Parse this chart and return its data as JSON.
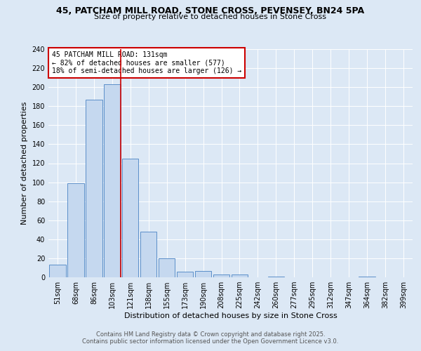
{
  "title_line1": "45, PATCHAM MILL ROAD, STONE CROSS, PEVENSEY, BN24 5PA",
  "title_line2": "Size of property relative to detached houses in Stone Cross",
  "xlabel": "Distribution of detached houses by size in Stone Cross",
  "ylabel": "Number of detached properties",
  "categories": [
    "51sqm",
    "68sqm",
    "86sqm",
    "103sqm",
    "121sqm",
    "138sqm",
    "155sqm",
    "173sqm",
    "190sqm",
    "208sqm",
    "225sqm",
    "242sqm",
    "260sqm",
    "277sqm",
    "295sqm",
    "312sqm",
    "347sqm",
    "364sqm",
    "382sqm",
    "399sqm"
  ],
  "values": [
    13,
    99,
    187,
    203,
    125,
    48,
    20,
    6,
    7,
    3,
    3,
    0,
    1,
    0,
    0,
    0,
    0,
    1,
    0,
    0
  ],
  "bar_color": "#c5d8ef",
  "bar_edge_color": "#5b8fc9",
  "red_line_after_index": 3,
  "annotation_text": "45 PATCHAM MILL ROAD: 131sqm\n← 82% of detached houses are smaller (577)\n18% of semi-detached houses are larger (126) →",
  "annotation_box_facecolor": "#ffffff",
  "annotation_box_edgecolor": "#cc0000",
  "ylim": [
    0,
    240
  ],
  "yticks": [
    0,
    20,
    40,
    60,
    80,
    100,
    120,
    140,
    160,
    180,
    200,
    220,
    240
  ],
  "footer1": "Contains HM Land Registry data © Crown copyright and database right 2025.",
  "footer2": "Contains public sector information licensed under the Open Government Licence v3.0.",
  "background_color": "#dce8f5",
  "plot_background": "#dce8f5",
  "red_line_color": "#cc0000",
  "grid_color": "#ffffff",
  "title_fontsize": 9,
  "subtitle_fontsize": 8,
  "axis_label_fontsize": 8,
  "tick_fontsize": 7,
  "annotation_fontsize": 7,
  "footer_fontsize": 6
}
